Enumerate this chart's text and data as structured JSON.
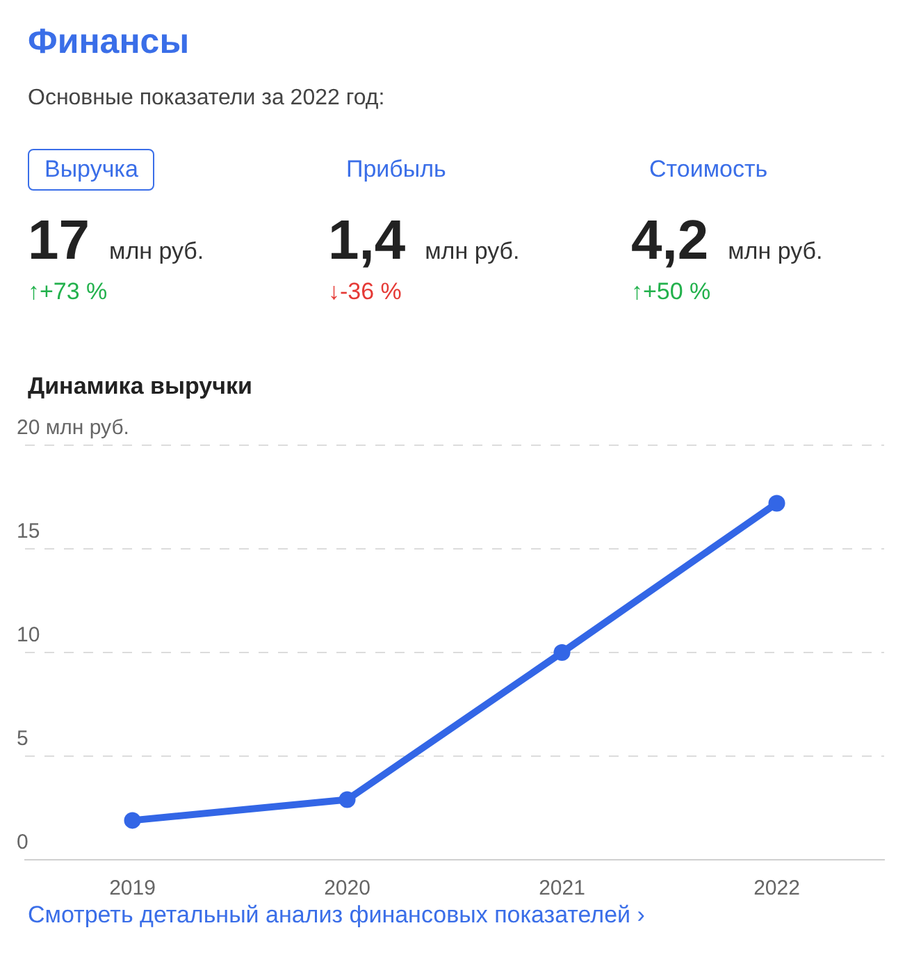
{
  "chart_data": [
    {
      "type": "other",
      "title": "Финансы",
      "subtitle": "Основные показатели за 2022 год:",
      "annotations": [
        "Выручка",
        "17",
        "млн руб.",
        "↑+73 %",
        "Прибыль",
        "1,4",
        "млн руб.",
        "↓-36 %",
        "Стоимость",
        "4,2",
        "млн руб.",
        "↑+50 %"
      ],
      "colors": [
        "#22b14c",
        "#e53935",
        "#22b14c"
      ]
    },
    {
      "type": "line",
      "title": "Динамика выручки",
      "categories": [
        "2019",
        "2020",
        "2021",
        "2022"
      ],
      "series": [
        {
          "color": "#3366e6",
          "values": [
            1.9,
            2.9,
            10,
            17.2
          ]
        }
      ],
      "ylim": [
        0,
        20
      ],
      "yticks": [
        0,
        5,
        10,
        15,
        {
          "value": 20,
          "label": "20 млн руб."
        }
      ],
      "grid": "y",
      "legend": false,
      "marker": "circle",
      "line_style": "solid",
      "annotations": [
        "Смотреть детальный анализ финансовых показателей ›"
      ]
    }
  ]
}
